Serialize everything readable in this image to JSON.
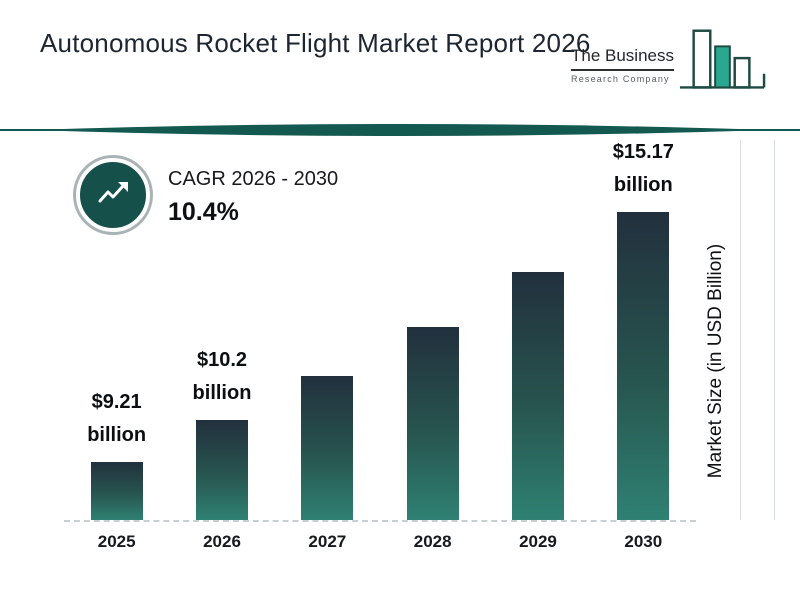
{
  "header": {
    "title": "Autonomous Rocket Flight Market Report 2026"
  },
  "logo": {
    "name": "The Business",
    "subtitle": "Research Company"
  },
  "cagr": {
    "label": "CAGR 2026 - 2030",
    "value": "10.4%"
  },
  "chart_data": {
    "type": "bar",
    "title": "Autonomous Rocket Flight Market Report 2026",
    "categories": [
      "2025",
      "2026",
      "2027",
      "2028",
      "2029",
      "2030"
    ],
    "values": [
      9.21,
      10.2,
      11.26,
      12.43,
      13.73,
      15.17
    ],
    "bar_labels": [
      [
        "$9.21",
        "billion"
      ],
      [
        "$10.2",
        "billion"
      ],
      null,
      null,
      null,
      [
        "$15.17",
        "billion"
      ]
    ],
    "xlabel": "",
    "ylabel": "Market Size (in USD Billion)",
    "ylim": [
      0,
      16
    ],
    "grid": false,
    "legend": false,
    "bar_gradient": [
      "#22303d",
      "#2f8173"
    ]
  },
  "colors": {
    "accent_teal": "#15504a",
    "divider": "#14594f",
    "logo_green": "#2aa88f",
    "text_dark": "#1c2530"
  }
}
